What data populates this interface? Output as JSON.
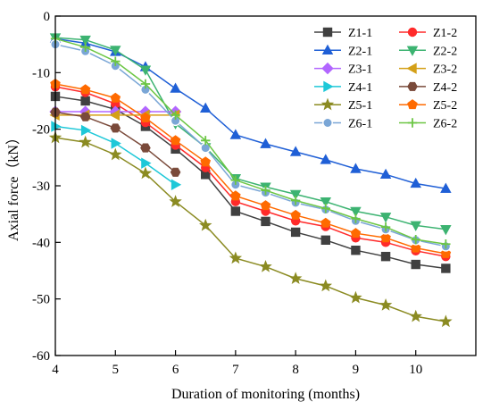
{
  "chart_data": {
    "type": "line",
    "xlabel": "Duration of monitoring (months)",
    "ylabel": "Axial force（kN）",
    "xlim": [
      4,
      11
    ],
    "ylim": [
      -60,
      0
    ],
    "xticks": [
      4,
      5,
      6,
      7,
      8,
      9,
      10
    ],
    "yticks": [
      0,
      -10,
      -20,
      -30,
      -40,
      -50,
      -60
    ],
    "grid": false,
    "legend_position": "top-right",
    "series": [
      {
        "name": "Z1-1",
        "color": "#404040",
        "marker": "square",
        "x": [
          4,
          4.5,
          5,
          5.5,
          6,
          6.5,
          7,
          7.5,
          8,
          8.5,
          9,
          9.5,
          10,
          10.5
        ],
        "y": [
          -14.2,
          -15,
          -16.5,
          -19.5,
          -23.5,
          -28,
          -34.5,
          -36.3,
          -38.2,
          -39.6,
          -41.4,
          -42.5,
          -43.9,
          -44.6
        ]
      },
      {
        "name": "Z1-2",
        "color": "#ff2a2a",
        "marker": "circle",
        "x": [
          4,
          4.5,
          5,
          5.5,
          6,
          6.5,
          7,
          7.5,
          8,
          8.5,
          9,
          9.5,
          10,
          10.5
        ],
        "y": [
          -12.5,
          -13.5,
          -15.5,
          -18.8,
          -22.8,
          -26.8,
          -32.8,
          -34.5,
          -36.2,
          -37.2,
          -39.2,
          -40,
          -41.5,
          -42.5
        ]
      },
      {
        "name": "Z2-1",
        "color": "#1f5fd6",
        "marker": "triangle-up",
        "x": [
          4,
          4.5,
          5,
          5.5,
          6,
          6.5,
          7,
          7.5,
          8,
          8.5,
          9,
          9.5,
          10,
          10.5
        ],
        "y": [
          -4,
          -4.8,
          -6.3,
          -9,
          -12.8,
          -16.3,
          -21,
          -22.6,
          -24,
          -25.4,
          -27,
          -28,
          -29.6,
          -30.5
        ]
      },
      {
        "name": "Z2-2",
        "color": "#3cb371",
        "marker": "triangle-down",
        "x": [
          4,
          4.5,
          5,
          5.5,
          6,
          6.5,
          7,
          7.5,
          8,
          8.5,
          9,
          9.5,
          10,
          10.5
        ],
        "y": [
          -3.8,
          -4.2,
          -6,
          -9.5,
          -19,
          -23.2,
          -28.7,
          -30.2,
          -31.5,
          -32.8,
          -34.5,
          -35.5,
          -37,
          -37.7
        ]
      },
      {
        "name": "Z3-1",
        "color": "#b266ff",
        "marker": "diamond",
        "x": [
          4,
          4.5,
          5,
          5.5,
          6
        ],
        "y": [
          -16.9,
          -16.9,
          -16.9,
          -16.9,
          -16.9
        ]
      },
      {
        "name": "Z3-2",
        "color": "#d4a017",
        "marker": "triangle-left",
        "x": [
          4,
          4.5,
          5,
          5.5,
          6
        ],
        "y": [
          -17.5,
          -17.5,
          -17.5,
          -17.5,
          -17.5
        ]
      },
      {
        "name": "Z4-1",
        "color": "#1ec8d8",
        "marker": "triangle-right",
        "x": [
          4,
          4.5,
          5,
          5.5,
          6
        ],
        "y": [
          -19.5,
          -20.2,
          -22.5,
          -26,
          -29.8
        ]
      },
      {
        "name": "Z4-2",
        "color": "#7a4a3a",
        "marker": "hexagon",
        "x": [
          4,
          4.5,
          5,
          5.5,
          6
        ],
        "y": [
          -17,
          -17.8,
          -19.8,
          -23.3,
          -27.6
        ]
      },
      {
        "name": "Z5-1",
        "color": "#8b8b22",
        "marker": "star",
        "x": [
          4,
          4.5,
          5,
          5.5,
          6,
          6.5,
          7,
          7.5,
          8,
          8.5,
          9,
          9.5,
          10,
          10.5
        ],
        "y": [
          -21.5,
          -22.3,
          -24.5,
          -27.8,
          -32.8,
          -37,
          -42.8,
          -44.3,
          -46.4,
          -47.7,
          -49.8,
          -51.1,
          -53.1,
          -54
        ]
      },
      {
        "name": "Z5-2",
        "color": "#ff6a00",
        "marker": "pentagon",
        "x": [
          4,
          4.5,
          5,
          5.5,
          6,
          6.5,
          7,
          7.5,
          8,
          8.5,
          9,
          9.5,
          10,
          10.5
        ],
        "y": [
          -12,
          -13,
          -14.5,
          -18,
          -22,
          -25.8,
          -31.8,
          -33.5,
          -35.2,
          -36.6,
          -38.4,
          -39.2,
          -41,
          -42
        ]
      },
      {
        "name": "Z6-1",
        "color": "#7aa6d6",
        "marker": "circle-ring",
        "x": [
          4,
          4.5,
          5,
          5.5,
          6,
          6.5,
          7,
          7.5,
          8,
          8.5,
          9,
          9.5,
          10,
          10.5
        ],
        "y": [
          -5,
          -6.2,
          -8.8,
          -13,
          -18.5,
          -23.3,
          -29.8,
          -31.2,
          -33,
          -34.2,
          -36.2,
          -37.7,
          -39.6,
          -40.7
        ]
      },
      {
        "name": "Z6-2",
        "color": "#6cc644",
        "marker": "plus",
        "x": [
          4,
          4.5,
          5,
          5.5,
          6,
          6.5,
          7,
          7.5,
          8,
          8.5,
          9,
          9.5,
          10,
          10.5
        ],
        "y": [
          -4,
          -5.5,
          -8,
          -12,
          -17.5,
          -22,
          -29,
          -30.8,
          -32.6,
          -34,
          -35.8,
          -37.3,
          -39.5,
          -40.3
        ]
      }
    ]
  }
}
